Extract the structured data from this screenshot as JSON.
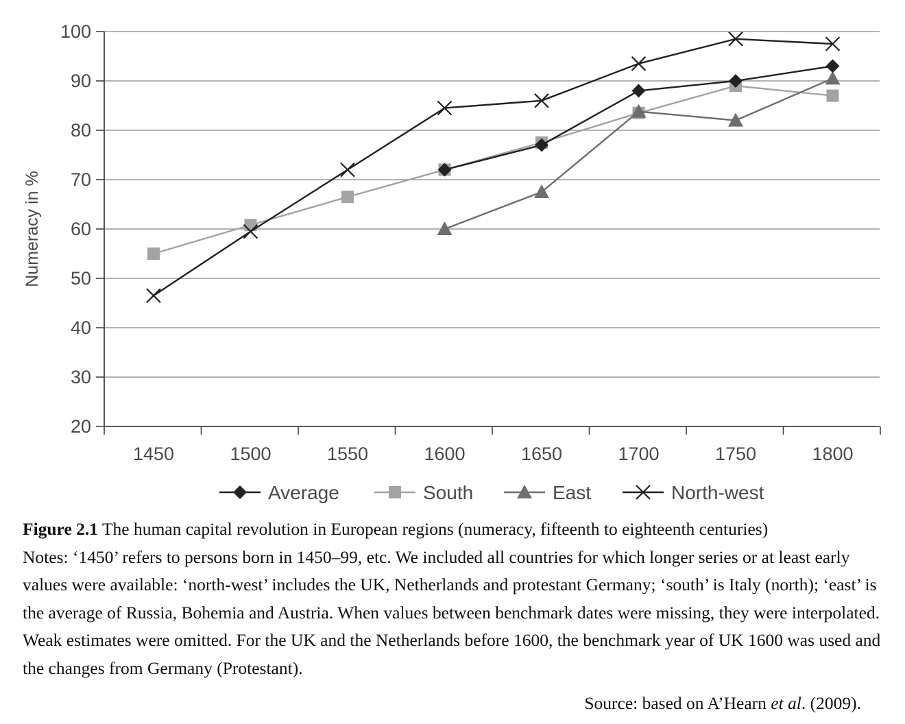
{
  "chart_data": {
    "type": "line",
    "ylabel": "Numeracy in %",
    "xlabel": "",
    "x": [
      1450,
      1500,
      1550,
      1600,
      1650,
      1700,
      1750,
      1800
    ],
    "ylim": [
      20,
      100
    ],
    "yticks": [
      20,
      30,
      40,
      50,
      60,
      70,
      80,
      90,
      100
    ],
    "grid": "horizontal",
    "legend_position": "bottom",
    "series": [
      {
        "name": "Average",
        "marker": "diamond",
        "color": "#222222",
        "values": [
          null,
          null,
          null,
          72,
          77,
          88,
          90,
          93
        ]
      },
      {
        "name": "South",
        "marker": "square",
        "color": "#a3a3a3",
        "values": [
          55,
          60.8,
          66.5,
          72,
          77.5,
          83.5,
          89,
          87
        ]
      },
      {
        "name": "East",
        "marker": "triangle",
        "color": "#6e6e6e",
        "values": [
          null,
          null,
          null,
          60,
          67.5,
          83.8,
          82,
          90.5
        ]
      },
      {
        "name": "North-west",
        "marker": "x",
        "color": "#222222",
        "values": [
          46.5,
          59.5,
          72,
          84.5,
          86,
          93.5,
          98.5,
          97.5
        ]
      }
    ]
  },
  "caption": {
    "figure_label": "Figure 2.1",
    "title": " The human capital revolution in European regions (numeracy, fifteenth to eighteenth centuries)",
    "notes": "Notes: ‘1450’ refers to persons born in 1450–99, etc. We included all countries for which longer series or at least early values were available: ‘north-west’ includes the UK, Netherlands and protestant Germany; ‘south’ is Italy (north); ‘east’ is the average of Russia, Bohemia and Austria. When values between benchmark dates were missing, they were interpolated. Weak estimates were omitted. For the UK and the Netherlands before 1600, the benchmark year of UK 1600 was used and the changes from Germany (Protestant)."
  },
  "source": {
    "prefix": "Source: based on A’Hearn ",
    "italic": "et al",
    "suffix": ". (2009)."
  }
}
